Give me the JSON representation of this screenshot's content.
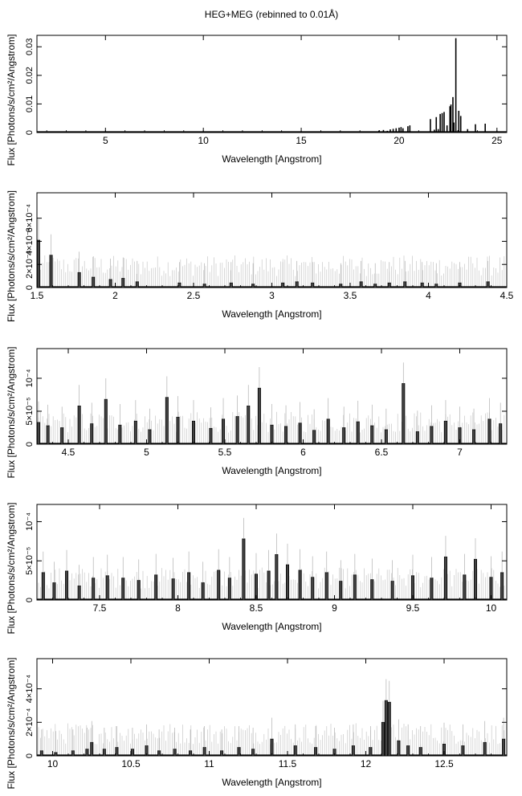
{
  "figure": {
    "title": "HEG+MEG (rebinned to 0.01Å)"
  },
  "chart_data": [
    {
      "type": "bar",
      "xlabel": "Wavelength [Angstrom]",
      "ylabel": "Flux [Photons/s/cm²/Angstrom]",
      "xlim": [
        1.5,
        25.5
      ],
      "ylim": [
        0,
        0.034
      ],
      "xticks": [
        5,
        10,
        15,
        20,
        25
      ],
      "xtick_labels": [
        "5",
        "10",
        "15",
        "20",
        "25"
      ],
      "yticks": [
        0,
        0.01,
        0.02,
        0.03
      ],
      "ytick_labels": [
        "0",
        "0.01",
        "0.02",
        "0.03"
      ],
      "x": [
        18.97,
        19.2,
        19.4,
        19.55,
        19.7,
        19.85,
        20.0,
        20.1,
        20.2,
        20.45,
        20.55,
        21.6,
        21.8,
        21.9,
        22.0,
        22.1,
        22.2,
        22.3,
        22.45,
        22.6,
        22.65,
        22.75,
        22.8,
        22.9,
        23.05,
        23.15,
        23.5,
        23.9,
        24.4
      ],
      "values": [
        0.0007,
        0.0009,
        0.0006,
        0.0011,
        0.0013,
        0.0015,
        0.0017,
        0.0019,
        0.0015,
        0.0022,
        0.0025,
        0.0047,
        0.001,
        0.0054,
        0.0012,
        0.0065,
        0.0068,
        0.0072,
        0.0025,
        0.0092,
        0.0098,
        0.0124,
        0.0035,
        0.033,
        0.0076,
        0.0058,
        0.0012,
        0.0029,
        0.0031
      ]
    },
    {
      "type": "bar",
      "xlabel": "Wavelength [Angstrom]",
      "ylabel": "Flux [Photons/s/cm²/Angstrom]",
      "xlim": [
        1.5,
        4.5
      ],
      "ylim": [
        0,
        0.00082
      ],
      "xticks": [
        1.5,
        2,
        2.5,
        3,
        3.5,
        4,
        4.5
      ],
      "xtick_labels": [
        "1.5",
        "2",
        "2.5",
        "3",
        "3.5",
        "4",
        "4.5"
      ],
      "yticks": [
        0,
        0.0002,
        0.0004,
        0.0006
      ],
      "ytick_labels": [
        "0",
        "2×10⁻⁴",
        "4×10⁻⁴",
        "6×10⁻⁴"
      ],
      "x": [
        1.51,
        1.59,
        1.77,
        1.86,
        1.97,
        2.05,
        2.14,
        2.41,
        2.57,
        2.74,
        2.88,
        3.07,
        3.16,
        3.26,
        3.44,
        3.57,
        3.66,
        3.75,
        3.85,
        3.96,
        4.05,
        4.2,
        4.38
      ],
      "values": [
        0.00041,
        0.00028,
        0.00013,
        9e-05,
        7e-05,
        8e-05,
        5e-05,
        4e-05,
        3e-05,
        4e-05,
        3e-05,
        4e-05,
        5e-05,
        4e-05,
        3e-05,
        5e-05,
        3e-05,
        4e-05,
        5e-05,
        4e-05,
        3e-05,
        4e-05,
        5e-05
      ]
    },
    {
      "type": "bar",
      "xlabel": "Wavelength [Angstrom]",
      "ylabel": "Flux [Photons/s/cm²/Angstrom]",
      "xlim": [
        4.3,
        7.3
      ],
      "ylim": [
        0,
        0.000145
      ],
      "xticks": [
        4.5,
        5,
        5.5,
        6,
        6.5,
        7
      ],
      "xtick_labels": [
        "4.5",
        "5",
        "5.5",
        "6",
        "6.5",
        "7"
      ],
      "yticks": [
        0,
        5e-05,
        0.0001
      ],
      "ytick_labels": [
        "0",
        "5×10⁻⁵",
        "10⁻⁴"
      ],
      "x": [
        4.31,
        4.37,
        4.46,
        4.57,
        4.65,
        4.74,
        4.83,
        4.93,
        5.02,
        5.13,
        5.2,
        5.3,
        5.41,
        5.49,
        5.58,
        5.65,
        5.72,
        5.8,
        5.89,
        5.98,
        6.07,
        6.16,
        6.26,
        6.35,
        6.44,
        6.53,
        6.64,
        6.73,
        6.82,
        6.91,
        7.0,
        7.09,
        7.19,
        7.26
      ],
      "values": [
        3.3e-05,
        2.8e-05,
        2.5e-05,
        5.8e-05,
        3.1e-05,
        6.8e-05,
        2.9e-05,
        3.5e-05,
        2.2e-05,
        7.1e-05,
        4.1e-05,
        3.5e-05,
        2.4e-05,
        3.8e-05,
        4.2e-05,
        5.8e-05,
        8.5e-05,
        2.9e-05,
        2.7e-05,
        3.2e-05,
        2.1e-05,
        3.8e-05,
        2.5e-05,
        3.4e-05,
        2.8e-05,
        2.2e-05,
        9.2e-05,
        1.9e-05,
        2.7e-05,
        3.5e-05,
        2.5e-05,
        2.2e-05,
        3.8e-05,
        3.1e-05
      ]
    },
    {
      "type": "bar",
      "xlabel": "Wavelength [Angstrom]",
      "ylabel": "Flux [Photons/s/cm²/Angstrom]",
      "xlim": [
        7.1,
        10.1
      ],
      "ylim": [
        0,
        0.000122
      ],
      "xticks": [
        7.5,
        8,
        8.5,
        9,
        9.5,
        10
      ],
      "xtick_labels": [
        "7.5",
        "8",
        "8.5",
        "9",
        "9.5",
        "10"
      ],
      "yticks": [
        0,
        5e-05,
        0.0001
      ],
      "ytick_labels": [
        "0",
        "5×10⁻⁵",
        "10⁻⁴"
      ],
      "x": [
        7.14,
        7.21,
        7.29,
        7.37,
        7.46,
        7.55,
        7.65,
        7.75,
        7.86,
        7.97,
        8.07,
        8.16,
        8.26,
        8.33,
        8.42,
        8.5,
        8.58,
        8.63,
        8.7,
        8.78,
        8.86,
        8.95,
        9.04,
        9.13,
        9.24,
        9.37,
        9.5,
        9.62,
        9.71,
        9.83,
        9.9,
        10.0,
        10.07
      ],
      "values": [
        3.5e-05,
        2.2e-05,
        3.7e-05,
        1.8e-05,
        2.8e-05,
        3.1e-05,
        2.8e-05,
        2.5e-05,
        3.2e-05,
        2.7e-05,
        3.5e-05,
        2.2e-05,
        3.8e-05,
        2.8e-05,
        7.8e-05,
        3.3e-05,
        3.7e-05,
        5.8e-05,
        4.5e-05,
        3.8e-05,
        2.9e-05,
        3.5e-05,
        2.4e-05,
        3.2e-05,
        2.6e-05,
        2.4e-05,
        3.1e-05,
        2.8e-05,
        5.5e-05,
        3.2e-05,
        5.2e-05,
        2.9e-05,
        3.5e-05
      ]
    },
    {
      "type": "bar",
      "xlabel": "Wavelength [Angstrom]",
      "ylabel": "Flux [Photons/s/cm²/Angstrom]",
      "xlim": [
        9.9,
        12.9
      ],
      "ylim": [
        0,
        0.00058
      ],
      "xticks": [
        10,
        10.5,
        11,
        11.5,
        12,
        12.5
      ],
      "xtick_labels": [
        "10",
        "10.5",
        "11",
        "11.5",
        "12",
        "12.5"
      ],
      "yticks": [
        0,
        0.0002,
        0.0004
      ],
      "ytick_labels": [
        "0",
        "2×10⁻⁴",
        "4×10⁻⁴"
      ],
      "x": [
        9.93,
        10.02,
        10.13,
        10.22,
        10.25,
        10.33,
        10.41,
        10.51,
        10.6,
        10.68,
        10.78,
        10.88,
        10.97,
        11.08,
        11.19,
        11.28,
        11.4,
        11.55,
        11.68,
        11.8,
        11.92,
        12.03,
        12.11,
        12.13,
        12.15,
        12.21,
        12.27,
        12.35,
        12.5,
        12.62,
        12.76,
        12.88
      ],
      "values": [
        3e-05,
        2e-05,
        3e-05,
        4e-05,
        8e-05,
        4e-05,
        5e-05,
        4e-05,
        6e-05,
        3e-05,
        4e-05,
        3e-05,
        5e-05,
        3e-05,
        5e-05,
        4e-05,
        0.0001,
        6e-05,
        5e-05,
        4e-05,
        6e-05,
        5e-05,
        0.0002,
        0.00033,
        0.00032,
        9e-05,
        6e-05,
        5e-05,
        7e-05,
        6e-05,
        8e-05,
        0.0001
      ]
    }
  ]
}
